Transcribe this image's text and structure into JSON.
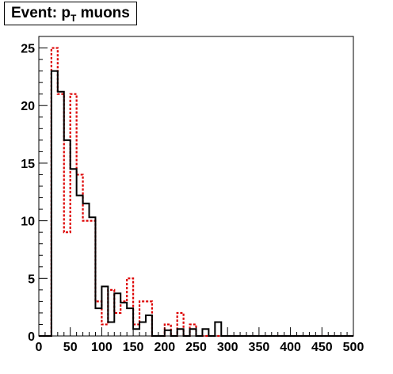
{
  "chart_data": {
    "type": "histogram",
    "title_main": "Event: p",
    "title_sub": "T",
    "title_rest": " muons",
    "xlim": [
      0,
      500
    ],
    "ylim": [
      0,
      26
    ],
    "bin_width": 10,
    "x_ticks": [
      0,
      50,
      100,
      150,
      200,
      250,
      300,
      350,
      400,
      450,
      500
    ],
    "y_ticks": [
      0,
      5,
      10,
      15,
      20,
      25
    ],
    "grid": false,
    "legend": "none",
    "series": [
      {
        "style": "solid",
        "color": "#000000",
        "bin_edges_start": 0,
        "values": [
          0,
          0,
          23,
          21.2,
          17,
          14.5,
          12.2,
          11.5,
          10.3,
          2.4,
          4.3,
          1.2,
          3.7,
          2.9,
          2.4,
          0.6,
          1.2,
          1.8,
          0,
          0,
          0.5,
          0,
          0.6,
          0,
          0.6,
          0,
          0.6,
          0,
          1.2,
          0,
          0,
          0,
          0,
          0,
          0,
          0,
          0,
          0,
          0,
          0,
          0,
          0,
          0,
          0,
          0,
          0,
          0,
          0,
          0,
          0
        ]
      },
      {
        "style": "dashed",
        "color": "#dd0000",
        "bin_edges_start": 0,
        "values": [
          0,
          0,
          25,
          21,
          9,
          21,
          14,
          10,
          10,
          3,
          1,
          4,
          2,
          3,
          5,
          1,
          3,
          3,
          0,
          0,
          1,
          0,
          2,
          0,
          1,
          0,
          0,
          0,
          0,
          0,
          0,
          0,
          0,
          0,
          0,
          0,
          0,
          0,
          0,
          0,
          0,
          0,
          0,
          0,
          0,
          0,
          0,
          0,
          0,
          0
        ]
      }
    ]
  }
}
